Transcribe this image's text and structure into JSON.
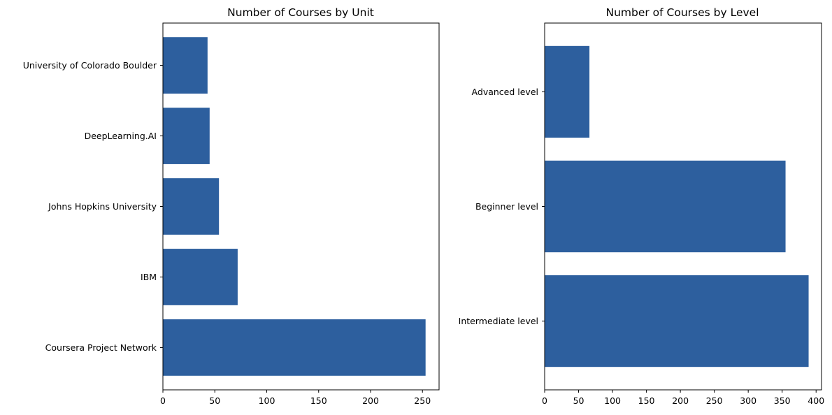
{
  "bar_color": "#2d5f9e",
  "chart_data": [
    {
      "type": "bar",
      "orientation": "horizontal",
      "title": "Number of Courses by Unit",
      "xlabel": "",
      "ylabel": "",
      "categories": [
        "Coursera Project Network",
        "IBM",
        "Johns Hopkins University",
        "DeepLearning.AI",
        "University of Colorado Boulder"
      ],
      "values": [
        253,
        72,
        54,
        45,
        43
      ],
      "xlim": [
        0,
        266
      ],
      "xticks": [
        0,
        50,
        100,
        150,
        200,
        250
      ],
      "grid": false
    },
    {
      "type": "bar",
      "orientation": "horizontal",
      "title": "Number of Courses by Level",
      "xlabel": "",
      "ylabel": "",
      "categories": [
        "Intermediate level",
        "Beginner level",
        "Advanced level"
      ],
      "values": [
        389,
        355,
        66
      ],
      "xlim": [
        0,
        408
      ],
      "xticks": [
        0,
        50,
        100,
        150,
        200,
        250,
        300,
        350,
        400
      ],
      "grid": false
    }
  ]
}
